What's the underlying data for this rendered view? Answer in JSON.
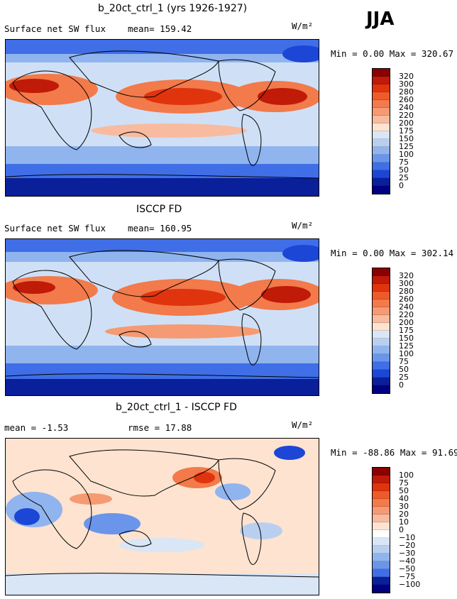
{
  "season": "JJA",
  "panels": [
    {
      "title": "b_20ct_ctrl_1 (yrs 1926-1927)",
      "left_label": "Surface net SW flux",
      "right_label": "mean= 159.42",
      "units": "W/m²",
      "minmax": "Min =    0.00 Max = 320.67",
      "colorbar": [
        "320",
        "300",
        "280",
        "260",
        "240",
        "220",
        "200",
        "175",
        "150",
        "125",
        "100",
        "75",
        "50",
        "25",
        "0"
      ],
      "colors": [
        "#8b0000",
        "#c01a08",
        "#e0340e",
        "#ee5a2a",
        "#f27a4b",
        "#f59a72",
        "#f8bba0",
        "#fde3d0",
        "#d8e6f6",
        "#b8cff0",
        "#90b4ee",
        "#6a95ea",
        "#3f6ee6",
        "#1c46d6",
        "#0a1f9a",
        "#000080"
      ]
    },
    {
      "title": "ISCCP FD",
      "left_label": "Surface net SW flux",
      "right_label": "mean= 160.95",
      "units": "W/m²",
      "minmax": "Min =    0.00 Max = 302.14",
      "colorbar": [
        "320",
        "300",
        "280",
        "260",
        "240",
        "220",
        "200",
        "175",
        "150",
        "125",
        "100",
        "75",
        "50",
        "25",
        "0"
      ],
      "colors": [
        "#8b0000",
        "#c01a08",
        "#e0340e",
        "#ee5a2a",
        "#f27a4b",
        "#f59a72",
        "#f8bba0",
        "#fde3d0",
        "#d8e6f6",
        "#b8cff0",
        "#90b4ee",
        "#6a95ea",
        "#3f6ee6",
        "#1c46d6",
        "#0a1f9a",
        "#000080"
      ]
    },
    {
      "title": "b_20ct_ctrl_1 - ISCCP FD",
      "left_label": "mean =  -1.53",
      "right_label": "rmse =  17.88",
      "units": "W/m²",
      "minmax": "Min = -88.86 Max =  91.69",
      "colorbar": [
        "100",
        "75",
        "50",
        "40",
        "30",
        "20",
        "10",
        "0",
        "−10",
        "−20",
        "−30",
        "−40",
        "−50",
        "−75",
        "−100"
      ],
      "colors": [
        "#8b0000",
        "#c01a08",
        "#e0340e",
        "#ee5a2a",
        "#f27a4b",
        "#f59a72",
        "#f8bba0",
        "#fde3d0",
        "#ffffff",
        "#d8e6f6",
        "#b8cff0",
        "#90b4ee",
        "#6a95ea",
        "#3f6ee6",
        "#0a1f9a",
        "#000080"
      ]
    }
  ]
}
